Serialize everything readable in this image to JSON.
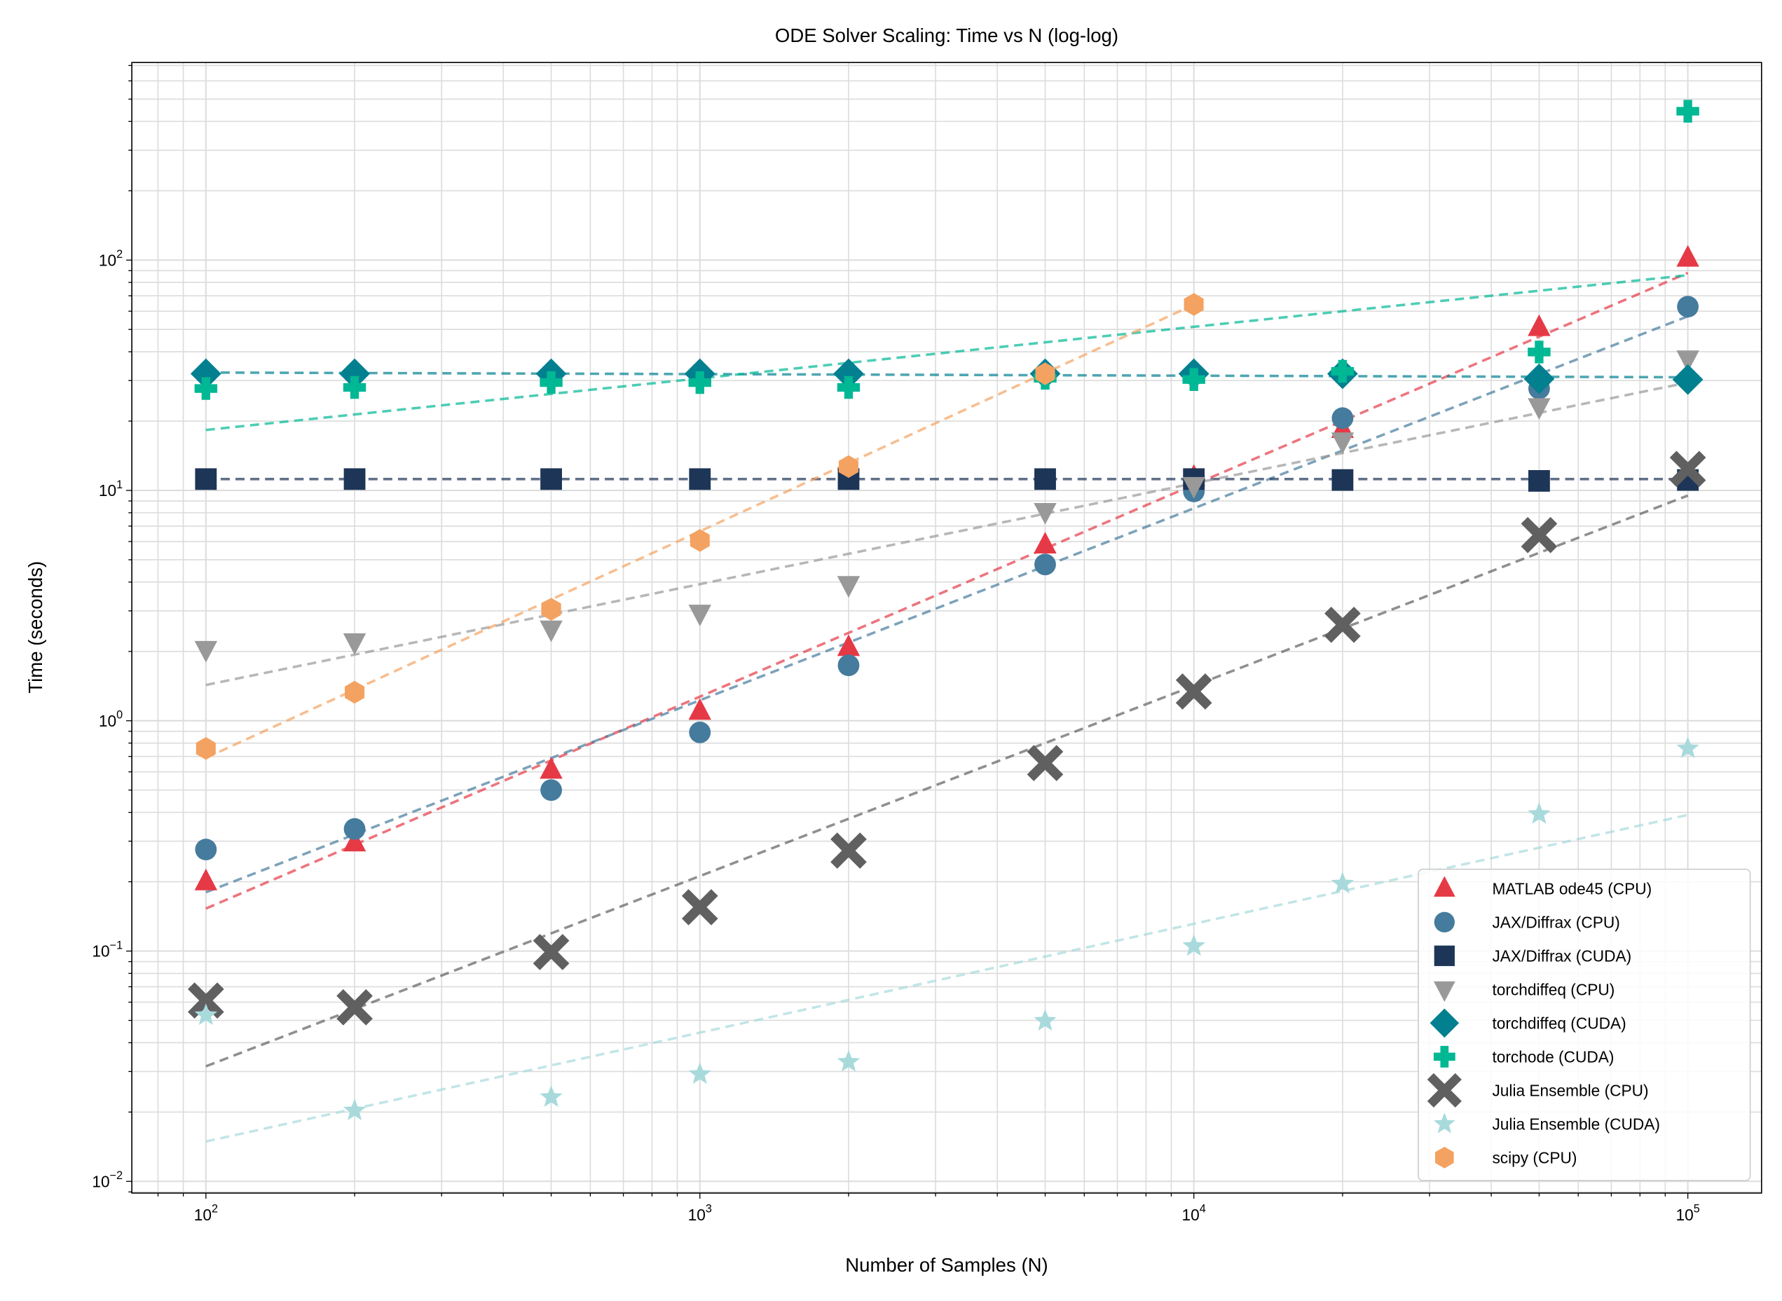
{
  "chart_data": {
    "type": "scatter",
    "title": "ODE Solver Scaling: Time vs N (log-log)",
    "xlabel": "Number of Samples (N)",
    "ylabel": "Time (seconds)",
    "xscale": "log",
    "yscale": "log",
    "xlim": [
      70.8,
      141000
    ],
    "ylim": [
      0.0089,
      721
    ],
    "grid": "major and minor, both axes",
    "legend_position": "bottom-right",
    "x_ticks": [
      {
        "value": 100,
        "base": "10",
        "exp": "2"
      },
      {
        "value": 1000,
        "base": "10",
        "exp": "3"
      },
      {
        "value": 10000,
        "base": "10",
        "exp": "4"
      },
      {
        "value": 100000,
        "base": "10",
        "exp": "5"
      }
    ],
    "y_ticks": [
      {
        "value": 0.01,
        "base": "10",
        "exp": "−2"
      },
      {
        "value": 0.1,
        "base": "10",
        "exp": "−1"
      },
      {
        "value": 1,
        "base": "10",
        "exp": "0"
      },
      {
        "value": 10,
        "base": "10",
        "exp": "1"
      },
      {
        "value": 100,
        "base": "10",
        "exp": "2"
      }
    ],
    "x": [
      100,
      200,
      500,
      1000,
      2000,
      5000,
      10000,
      20000,
      50000,
      100000
    ],
    "series": [
      {
        "name": "MATLAB ode45 (CPU)",
        "color": "#e63946",
        "marker": "triangle-up",
        "values": [
          0.2,
          0.295,
          0.61,
          1.1,
          2.08,
          5.8,
          11.4,
          18.4,
          51,
          102
        ],
        "fit": {
          "x": [
            100,
            100000
          ],
          "y": [
            0.153,
            88
          ]
        }
      },
      {
        "name": "JAX/Diffrax (CPU)",
        "color": "#457b9d",
        "marker": "circle",
        "values": [
          0.276,
          0.339,
          0.5,
          0.89,
          1.74,
          4.77,
          9.9,
          20.6,
          27.7,
          62.8
        ],
        "fit": {
          "x": [
            100,
            100000
          ],
          "y": [
            0.18,
            57
          ]
        }
      },
      {
        "name": "JAX/Diffrax (CUDA)",
        "color": "#1d3557",
        "marker": "square",
        "values": [
          11.2,
          11.2,
          11.2,
          11.2,
          11.2,
          11.2,
          11.2,
          11.1,
          11.0,
          11.1
        ],
        "fit": {
          "x": [
            100,
            100000
          ],
          "y": [
            11.2,
            11.2
          ]
        }
      },
      {
        "name": "torchdiffeq (CPU)",
        "color": "#999999",
        "marker": "triangle-down",
        "values": [
          2.04,
          2.2,
          2.5,
          2.93,
          3.9,
          8.1,
          10.5,
          16.4,
          23.1,
          37.2
        ],
        "fit": {
          "x": [
            100,
            100000
          ],
          "y": [
            1.43,
            29.4
          ]
        }
      },
      {
        "name": "torchdiffeq (CUDA)",
        "color": "#028090",
        "marker": "diamond",
        "values": [
          32.1,
          32.1,
          32.1,
          32.1,
          32.1,
          32.1,
          32.1,
          32.1,
          30.5,
          30.3
        ],
        "fit": {
          "x": [
            100,
            100000
          ],
          "y": [
            32.5,
            31
          ]
        }
      },
      {
        "name": "torchode (CUDA)",
        "color": "#00b894",
        "marker": "plus",
        "values": [
          27.7,
          28,
          29.4,
          29.4,
          28,
          30.7,
          30.3,
          32.9,
          39.9,
          443
        ],
        "fit": {
          "x": [
            100,
            100000
          ],
          "y": [
            18.3,
            86
          ]
        }
      },
      {
        "name": "Julia Ensemble (CPU)",
        "color": "#606060",
        "marker": "x",
        "values": [
          0.061,
          0.057,
          0.099,
          0.155,
          0.273,
          0.655,
          1.34,
          2.61,
          6.4,
          12.4
        ],
        "fit": {
          "x": [
            100,
            100000
          ],
          "y": [
            0.0316,
            9.5
          ]
        }
      },
      {
        "name": "Julia Ensemble (CUDA)",
        "color": "#a8dadc",
        "marker": "star",
        "values": [
          0.0526,
          0.0203,
          0.0232,
          0.0292,
          0.033,
          0.0497,
          0.105,
          0.196,
          0.393,
          0.758
        ],
        "fit": {
          "x": [
            100,
            100000
          ],
          "y": [
            0.0149,
            0.39
          ]
        }
      },
      {
        "name": "scipy (CPU)",
        "color": "#f4a261",
        "marker": "hexagon",
        "values": [
          0.758,
          1.33,
          3.05,
          6.07,
          12.7,
          32.1,
          64.2,
          null,
          null,
          null
        ],
        "fit": {
          "x": [
            100,
            10000
          ],
          "y": [
            0.69,
            64
          ]
        }
      }
    ]
  }
}
